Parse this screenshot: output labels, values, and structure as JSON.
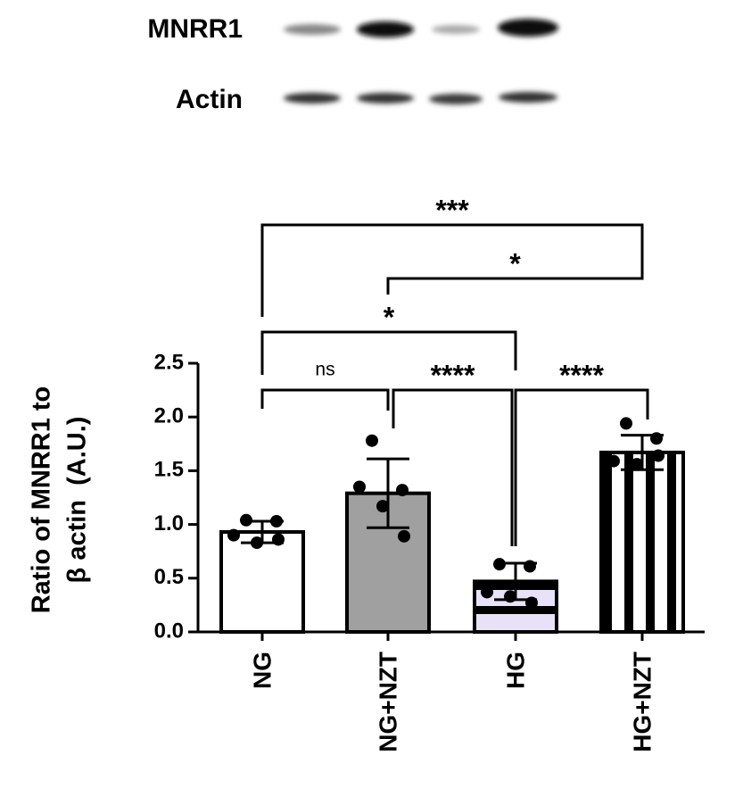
{
  "blot": {
    "labels": [
      "MNRR1",
      "Actin"
    ]
  },
  "chart_data": {
    "type": "bar",
    "y_label": [
      "Ratio of MNRR1 to",
      "β actin  (A.U.)"
    ],
    "categories": [
      "NG",
      "NG+NZT",
      "HG",
      "HG+NZT"
    ],
    "values": [
      0.93,
      1.29,
      0.47,
      1.67
    ],
    "errors": [
      0.1,
      0.32,
      0.17,
      0.16
    ],
    "points": [
      [
        1.04,
        1.03,
        0.9,
        0.83,
        0.86
      ],
      [
        1.78,
        1.32,
        1.35,
        1.17,
        0.89
      ],
      [
        0.63,
        0.61,
        0.37,
        0.33,
        0.27
      ],
      [
        1.94,
        1.8,
        1.59,
        1.56,
        1.64
      ]
    ],
    "colors": [
      "#ffffff",
      "#a0a0a0",
      "#e8e2f8",
      "#ffffff"
    ],
    "hatch": [
      null,
      null,
      "horizontal",
      "vertical"
    ],
    "ylim": [
      0,
      2.5
    ],
    "yticks": [
      {
        "value": 0,
        "label": "0.0"
      },
      0.5,
      {
        "value": 1,
        "label": "1.0"
      },
      1.5,
      {
        "value": 2,
        "label": "2.0"
      },
      2.5
    ],
    "comparisons": [
      {
        "from": 0,
        "to": 3,
        "label": "***"
      },
      {
        "from": 1,
        "to": 3,
        "label": "*"
      },
      {
        "from": 0,
        "to": 2,
        "label": "*"
      },
      {
        "from": 0,
        "to": 1,
        "label": "ns"
      },
      {
        "from": 1,
        "to": 2,
        "label": "****"
      },
      {
        "from": 2,
        "to": 3,
        "label": "****"
      }
    ]
  }
}
